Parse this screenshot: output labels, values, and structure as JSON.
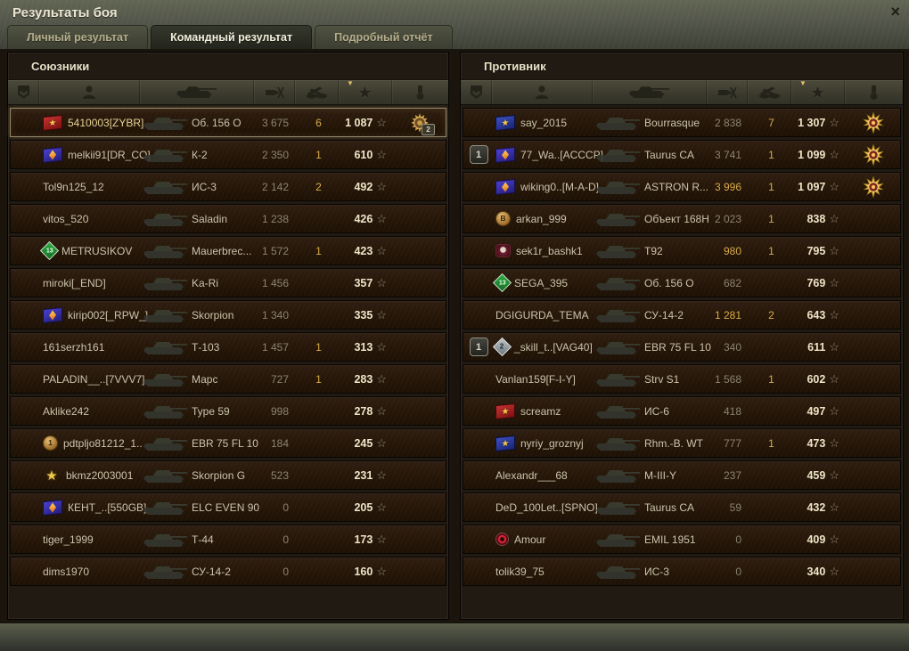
{
  "window": {
    "title": "Результаты боя",
    "close_glyph": "×"
  },
  "tabs": [
    {
      "label": "Личный результат",
      "active": false
    },
    {
      "label": "Командный результат",
      "active": true
    },
    {
      "label": "Подробный отчёт",
      "active": false
    }
  ],
  "columns": {
    "icons": [
      "squad-icon",
      "player-icon",
      "tank-icon",
      "damage-icon",
      "frags-icon",
      "xp-star-icon",
      "medal-icon"
    ],
    "star_glyph": "★",
    "xp_star_glyph": "☆",
    "sort_arrow_glyph": "▼",
    "sorted_column": "xp-star-icon"
  },
  "colors": {
    "gold_value": "#d9ac49",
    "xp_value": "#eee5c6",
    "own_row_border": "#95886a"
  },
  "teams": {
    "allies": {
      "title": "Союзники",
      "rows": [
        {
          "own": true,
          "emblem": "red-flag",
          "name": "5410003[ZYBR]",
          "tank": "Об. 156 О",
          "dmg": "3 675",
          "frags": "6",
          "xp": "1 087",
          "medal": "round-bronze",
          "medal_count": "2"
        },
        {
          "emblem": "purple-gem",
          "name": "melkii91[DR_CO]",
          "tank": "К-2",
          "dmg": "2 350",
          "frags": "1",
          "xp": "610"
        },
        {
          "name": "Tol9n125_12",
          "tank": "ИС-3",
          "dmg": "2 142",
          "frags": "2",
          "xp": "492"
        },
        {
          "name": "vitos_520",
          "tank": "Saladin",
          "dmg": "1 238",
          "frags": "",
          "xp": "426"
        },
        {
          "emblem": "green-diamond",
          "emblem_label": "13",
          "name": "METRUSIKOV",
          "tank": "Mauerbrec...",
          "dmg": "1 572",
          "frags": "1",
          "xp": "423"
        },
        {
          "name": "miroki[_END]",
          "tank": "Ka-Ri",
          "dmg": "1 456",
          "frags": "",
          "xp": "357"
        },
        {
          "emblem": "purple-gem",
          "name": "kirip002[_RPW_]",
          "tank": "Skorpion",
          "dmg": "1 340",
          "frags": "",
          "xp": "335"
        },
        {
          "name": "161serzh161",
          "tank": "Т-103",
          "dmg": "1 457",
          "frags": "1",
          "xp": "313"
        },
        {
          "name": "PALADIN__..[7VVV7]",
          "tank": "Марс",
          "dmg": "727",
          "frags": "1",
          "xp": "283"
        },
        {
          "name": "Aklike242",
          "tank": "Type 59",
          "dmg": "998",
          "frags": "",
          "xp": "278"
        },
        {
          "emblem": "bronze-circle",
          "emblem_label": "1",
          "name": "pdtpljo81212_1..",
          "tank": "EBR 75 FL 10",
          "dmg": "184",
          "frags": "",
          "xp": "245"
        },
        {
          "emblem": "gold-star",
          "name": "bkmz2003001",
          "tank": "Skorpion G",
          "dmg": "523",
          "frags": "",
          "xp": "231"
        },
        {
          "emblem": "purple-gem",
          "name": "КЕНТ_..[550GB]",
          "tank": "ELC EVEN 90",
          "dmg": "0",
          "frags": "",
          "xp": "205"
        },
        {
          "name": "tiger_1999",
          "tank": "Т-44",
          "dmg": "0",
          "frags": "",
          "xp": "173"
        },
        {
          "name": "dims1970",
          "tank": "СУ-14-2",
          "dmg": "0",
          "frags": "",
          "xp": "160"
        }
      ]
    },
    "enemies": {
      "title": "Противник",
      "rows": [
        {
          "emblem": "blue-flag",
          "name": "say_2015",
          "tank": "Bourrasque",
          "dmg": "2 838",
          "frags": "7",
          "xp": "1 307",
          "medal": "burst-gold"
        },
        {
          "platoon": "1",
          "emblem": "purple-gem",
          "name": "77_Wa..[ACCCP]",
          "tank": "Taurus CA",
          "dmg": "3 741",
          "frags": "1",
          "xp": "1 099",
          "medal": "burst-gold"
        },
        {
          "emblem": "purple-gem",
          "name": "wiking0..[M-A-D]",
          "tank": "ASTRON R...",
          "dmg": "3 996",
          "dmg_gold": true,
          "frags": "1",
          "xp": "1 097",
          "medal": "burst-gold"
        },
        {
          "emblem": "bronze-circle",
          "emblem_label": "B",
          "name": "arkan_999",
          "tank": "Объект 168Н",
          "dmg": "2 023",
          "frags": "1",
          "xp": "838"
        },
        {
          "emblem": "skull",
          "name": "sek1r_bashk1",
          "tank": "Т92",
          "dmg": "980",
          "dmg_gold": true,
          "frags": "1",
          "xp": "795"
        },
        {
          "emblem": "green-diamond",
          "emblem_label": "13",
          "name": "SEGA_395",
          "tank": "Об. 156 О",
          "dmg": "682",
          "frags": "",
          "xp": "769"
        },
        {
          "name": "DGIGURDA_TEMA",
          "tank": "СУ-14-2",
          "dmg": "1 281",
          "dmg_gold": true,
          "frags": "2",
          "xp": "643"
        },
        {
          "platoon": "1",
          "emblem": "gray-diamond",
          "emblem_label": "2",
          "name": "_skill_t..[VAG40]",
          "tank": "EBR 75 FL 10",
          "dmg": "340",
          "frags": "",
          "xp": "611"
        },
        {
          "name": "Vanlan159[F-I-Y]",
          "tank": "Strv S1",
          "dmg": "1 568",
          "frags": "1",
          "xp": "602"
        },
        {
          "emblem": "red-flag",
          "name": "screamz",
          "tank": "ИС-6",
          "dmg": "418",
          "frags": "",
          "xp": "497"
        },
        {
          "emblem": "blue-flag",
          "name": "nyriy_groznyj",
          "tank": "Rhm.-B. WT",
          "dmg": "777",
          "frags": "1",
          "xp": "473"
        },
        {
          "name": "Alexandr___68",
          "tank": "M-III-Y",
          "dmg": "237",
          "frags": "",
          "xp": "459"
        },
        {
          "name": "DeD_100Let..[SPNO]",
          "tank": "Taurus CA",
          "dmg": "59",
          "frags": "",
          "xp": "432"
        },
        {
          "emblem": "red-ring",
          "name": "Amour",
          "tank": "EMIL 1951",
          "dmg": "0",
          "frags": "",
          "xp": "409"
        },
        {
          "name": "tolik39_75",
          "tank": "ИС-3",
          "dmg": "0",
          "frags": "",
          "xp": "340"
        }
      ]
    }
  }
}
